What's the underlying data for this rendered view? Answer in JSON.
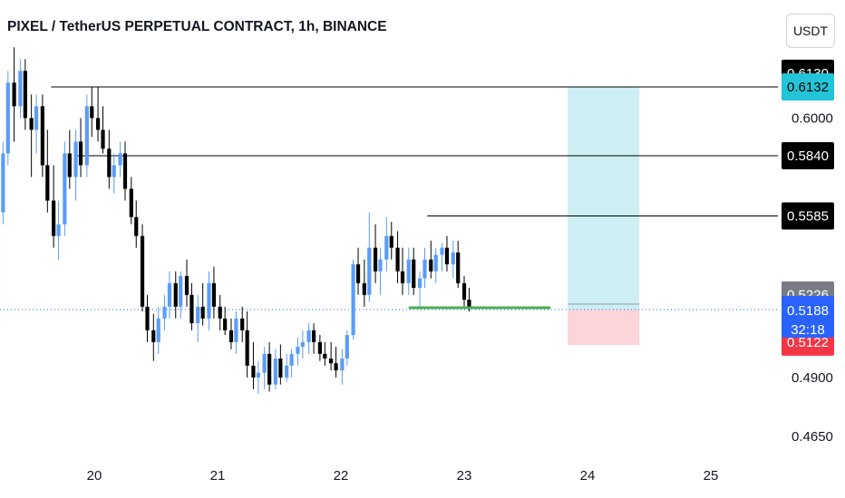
{
  "header": {
    "title": "PIXEL / TetherUS PERPETUAL CONTRACT, 1h, BINANCE",
    "currency_button": "USDT"
  },
  "colors": {
    "up": "#5b9cf6",
    "down": "#000000",
    "target_zone": "#cdeff4",
    "stop_zone": "#fbd5d8",
    "entry_line": "#4caf50",
    "current_price_line": "#2962ff",
    "tag_black": "#000000",
    "tag_teal": "#22c4d8",
    "tag_gray": "#787b86",
    "tag_blue": "#2962ff",
    "tag_red": "#f23645"
  },
  "chart_data": {
    "type": "candlestick",
    "title": "PIXEL / TetherUS PERPETUAL CONTRACT, 1h, BINANCE",
    "x_labels": [
      {
        "label": "20",
        "day": 20
      },
      {
        "label": "21",
        "day": 21
      },
      {
        "label": "22",
        "day": 22
      },
      {
        "label": "23",
        "day": 23
      },
      {
        "label": "24",
        "day": 24
      },
      {
        "label": "25",
        "day": 25
      }
    ],
    "x_range": [
      19.33,
      25.6
    ],
    "y_range": [
      0.455,
      0.63
    ],
    "y_ticks": [
      0.6,
      0.49,
      0.465
    ],
    "y_tick_labels": [
      "0.6000",
      "0.4900",
      "0.4650"
    ],
    "candles": [
      [
        19.22,
        0.51,
        0.56,
        0.5,
        0.56
      ],
      [
        19.26,
        0.56,
        0.59,
        0.555,
        0.585
      ],
      [
        19.3,
        0.585,
        0.62,
        0.58,
        0.615
      ],
      [
        19.35,
        0.615,
        0.63,
        0.59,
        0.605
      ],
      [
        19.4,
        0.605,
        0.625,
        0.6,
        0.62
      ],
      [
        19.44,
        0.62,
        0.625,
        0.595,
        0.6
      ],
      [
        19.49,
        0.6,
        0.61,
        0.575,
        0.595
      ],
      [
        19.53,
        0.595,
        0.61,
        0.585,
        0.605
      ],
      [
        19.58,
        0.605,
        0.61,
        0.575,
        0.58
      ],
      [
        19.62,
        0.58,
        0.595,
        0.56,
        0.565
      ],
      [
        19.67,
        0.565,
        0.58,
        0.545,
        0.55
      ],
      [
        19.71,
        0.55,
        0.565,
        0.54,
        0.555
      ],
      [
        19.76,
        0.555,
        0.59,
        0.55,
        0.585
      ],
      [
        19.8,
        0.585,
        0.595,
        0.57,
        0.575
      ],
      [
        19.85,
        0.575,
        0.595,
        0.565,
        0.59
      ],
      [
        19.89,
        0.59,
        0.6,
        0.575,
        0.58
      ],
      [
        19.94,
        0.58,
        0.61,
        0.575,
        0.605
      ],
      [
        19.98,
        0.605,
        0.613,
        0.592,
        0.6
      ],
      [
        20.03,
        0.6,
        0.613,
        0.59,
        0.595
      ],
      [
        20.07,
        0.595,
        0.605,
        0.585,
        0.587
      ],
      [
        20.12,
        0.587,
        0.595,
        0.57,
        0.575
      ],
      [
        20.16,
        0.575,
        0.585,
        0.568,
        0.58
      ],
      [
        20.21,
        0.58,
        0.59,
        0.575,
        0.585
      ],
      [
        20.25,
        0.585,
        0.59,
        0.565,
        0.57
      ],
      [
        20.3,
        0.57,
        0.575,
        0.555,
        0.558
      ],
      [
        20.34,
        0.558,
        0.565,
        0.545,
        0.55
      ],
      [
        20.39,
        0.55,
        0.555,
        0.518,
        0.52
      ],
      [
        20.43,
        0.52,
        0.525,
        0.505,
        0.51
      ],
      [
        20.48,
        0.51,
        0.517,
        0.497,
        0.505
      ],
      [
        20.52,
        0.505,
        0.52,
        0.5,
        0.515
      ],
      [
        20.57,
        0.515,
        0.525,
        0.51,
        0.52
      ],
      [
        20.61,
        0.52,
        0.535,
        0.515,
        0.53
      ],
      [
        20.66,
        0.53,
        0.535,
        0.515,
        0.52
      ],
      [
        20.7,
        0.52,
        0.535,
        0.515,
        0.533
      ],
      [
        20.75,
        0.533,
        0.54,
        0.52,
        0.525
      ],
      [
        20.79,
        0.525,
        0.53,
        0.51,
        0.513
      ],
      [
        20.84,
        0.513,
        0.525,
        0.505,
        0.52
      ],
      [
        20.88,
        0.52,
        0.53,
        0.512,
        0.515
      ],
      [
        20.93,
        0.515,
        0.535,
        0.51,
        0.53
      ],
      [
        20.97,
        0.53,
        0.537,
        0.515,
        0.52
      ],
      [
        21.02,
        0.52,
        0.525,
        0.51,
        0.515
      ],
      [
        21.06,
        0.515,
        0.52,
        0.508,
        0.51
      ],
      [
        21.11,
        0.51,
        0.515,
        0.502,
        0.505
      ],
      [
        21.15,
        0.505,
        0.518,
        0.5,
        0.515
      ],
      [
        21.2,
        0.515,
        0.52,
        0.505,
        0.51
      ],
      [
        21.24,
        0.51,
        0.518,
        0.49,
        0.495
      ],
      [
        21.29,
        0.495,
        0.505,
        0.485,
        0.49
      ],
      [
        21.33,
        0.49,
        0.497,
        0.483,
        0.492
      ],
      [
        21.38,
        0.492,
        0.503,
        0.485,
        0.5
      ],
      [
        21.42,
        0.5,
        0.505,
        0.484,
        0.487
      ],
      [
        21.47,
        0.487,
        0.502,
        0.485,
        0.498
      ],
      [
        21.51,
        0.498,
        0.504,
        0.487,
        0.49
      ],
      [
        21.56,
        0.49,
        0.5,
        0.488,
        0.495
      ],
      [
        21.6,
        0.495,
        0.502,
        0.49,
        0.5
      ],
      [
        21.65,
        0.5,
        0.507,
        0.495,
        0.503
      ],
      [
        21.69,
        0.503,
        0.51,
        0.498,
        0.505
      ],
      [
        21.74,
        0.505,
        0.513,
        0.5,
        0.51
      ],
      [
        21.78,
        0.51,
        0.513,
        0.5,
        0.505
      ],
      [
        21.83,
        0.505,
        0.508,
        0.497,
        0.5
      ],
      [
        21.87,
        0.5,
        0.505,
        0.495,
        0.498
      ],
      [
        21.92,
        0.498,
        0.505,
        0.493,
        0.496
      ],
      [
        21.96,
        0.496,
        0.503,
        0.49,
        0.493
      ],
      [
        22.01,
        0.493,
        0.502,
        0.487,
        0.498
      ],
      [
        22.05,
        0.498,
        0.51,
        0.495,
        0.508
      ],
      [
        22.1,
        0.508,
        0.54,
        0.506,
        0.538
      ],
      [
        22.14,
        0.538,
        0.545,
        0.525,
        0.53
      ],
      [
        22.19,
        0.53,
        0.54,
        0.52,
        0.525
      ],
      [
        22.23,
        0.525,
        0.56,
        0.522,
        0.545
      ],
      [
        22.28,
        0.545,
        0.555,
        0.53,
        0.535
      ],
      [
        22.32,
        0.535,
        0.545,
        0.525,
        0.54
      ],
      [
        22.37,
        0.54,
        0.558,
        0.535,
        0.55
      ],
      [
        22.41,
        0.55,
        0.556,
        0.54,
        0.545
      ],
      [
        22.46,
        0.545,
        0.552,
        0.53,
        0.535
      ],
      [
        22.5,
        0.535,
        0.545,
        0.525,
        0.53
      ],
      [
        22.55,
        0.53,
        0.545,
        0.525,
        0.54
      ],
      [
        22.59,
        0.54,
        0.545,
        0.525,
        0.528
      ],
      [
        22.64,
        0.528,
        0.535,
        0.52,
        0.532
      ],
      [
        22.68,
        0.532,
        0.545,
        0.528,
        0.54
      ],
      [
        22.73,
        0.54,
        0.548,
        0.532,
        0.535
      ],
      [
        22.77,
        0.535,
        0.545,
        0.53,
        0.542
      ],
      [
        22.82,
        0.542,
        0.547,
        0.535,
        0.545
      ],
      [
        22.86,
        0.545,
        0.55,
        0.535,
        0.538
      ],
      [
        22.91,
        0.538,
        0.548,
        0.532,
        0.543
      ],
      [
        22.95,
        0.543,
        0.548,
        0.528,
        0.53
      ],
      [
        23.0,
        0.53,
        0.533,
        0.52,
        0.523
      ],
      [
        23.04,
        0.523,
        0.528,
        0.518,
        0.52
      ]
    ],
    "horizontal_lines": [
      {
        "price": 0.6132,
        "from_day": 19.65,
        "color": "#000000"
      },
      {
        "price": 0.584,
        "from_day": 19.85,
        "color": "#000000"
      },
      {
        "price": 0.5585,
        "from_day": 22.7,
        "color": "#000000"
      }
    ],
    "position": {
      "from_day": 23.84,
      "to_day": 24.42,
      "target": 0.6132,
      "entry": 0.5188,
      "stop": 0.5122
    },
    "entry_line": {
      "price": 0.5188,
      "from_day": 22.55,
      "to_day": 23.7
    },
    "current_price": 0.5188,
    "price_tags": [
      {
        "label": "0.6130",
        "price": 0.619,
        "bg": "#000000",
        "fg": "#ffffff"
      },
      {
        "label": "0.6132",
        "price": 0.6132,
        "bg": "#22c4d8",
        "fg": "#000000"
      },
      {
        "label": "0.5840",
        "price": 0.584,
        "bg": "#000000",
        "fg": "#ffffff"
      },
      {
        "label": "0.5585",
        "price": 0.5585,
        "bg": "#000000",
        "fg": "#ffffff"
      },
      {
        "label": "0.5226",
        "price": 0.525,
        "bg": "#787b86",
        "fg": "#ffffff"
      },
      {
        "label": "0.5122",
        "price": 0.505,
        "bg": "#f23645",
        "fg": "#ffffff"
      }
    ],
    "current_price_tag": {
      "label": "0.5188",
      "countdown": "32:18"
    }
  }
}
